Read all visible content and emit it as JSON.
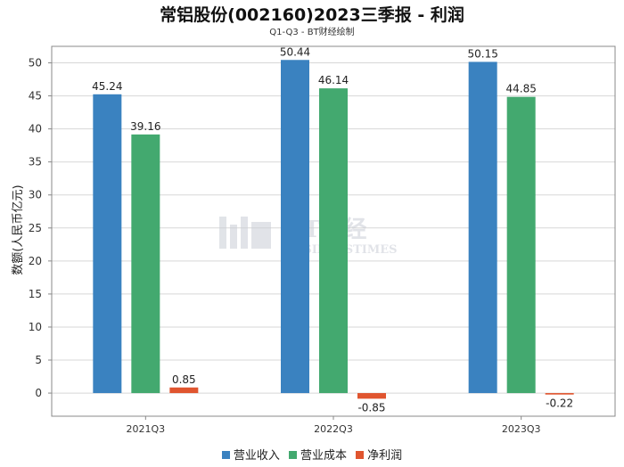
{
  "colors": {
    "revenue": "#3a82c0",
    "cost": "#43a96f",
    "profit": "#e0552f",
    "grid": "#d7d7d7",
    "axis": "#888888"
  },
  "watermark": {
    "brand": "BT财经",
    "sub": "BUSINESSTIMES"
  },
  "chart_data": {
    "type": "bar",
    "title": "常铝股份(002160)2023三季报 - 利润",
    "subtitle": "Q1-Q3 - BT财经绘制",
    "xlabel": "",
    "ylabel": "数额(人民币亿元)",
    "categories": [
      "2021Q3",
      "2022Q3",
      "2023Q3"
    ],
    "series": [
      {
        "name": "营业收入",
        "values": [
          45.24,
          50.44,
          50.15
        ]
      },
      {
        "name": "营业成本",
        "values": [
          39.16,
          46.14,
          44.85
        ]
      },
      {
        "name": "净利润",
        "values": [
          0.85,
          -0.85,
          -0.22
        ]
      }
    ],
    "ylim": [
      -3.5,
      52.5
    ],
    "yticks": [
      0,
      5,
      10,
      15,
      20,
      25,
      30,
      35,
      40,
      45,
      50
    ],
    "grid": true,
    "legend_position": "bottom-center"
  }
}
